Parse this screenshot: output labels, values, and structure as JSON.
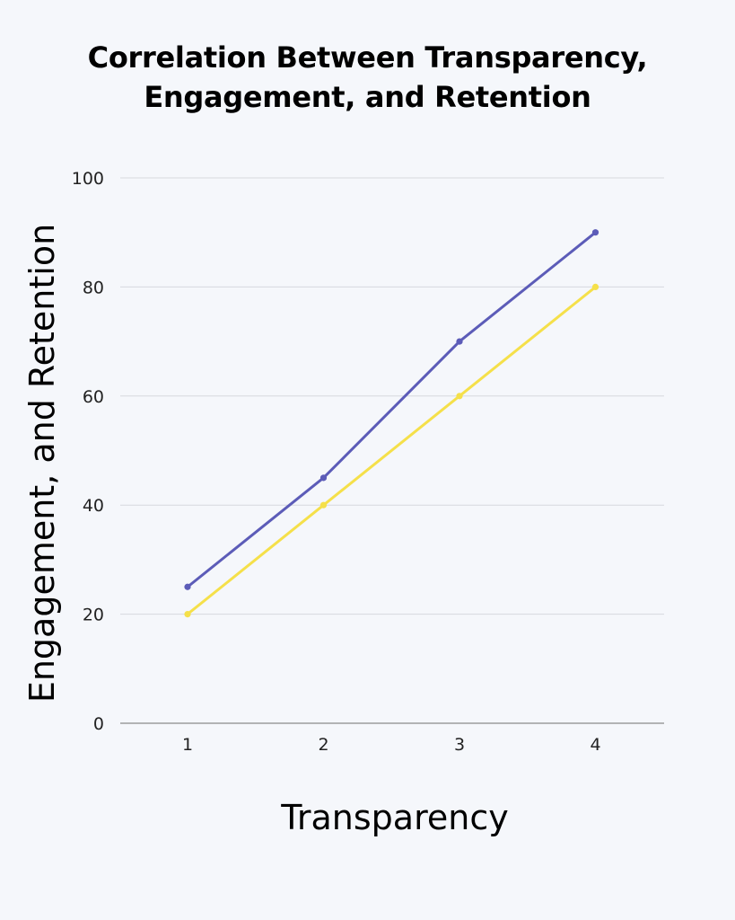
{
  "chart_data": {
    "type": "line",
    "title_lines": [
      "Correlation Between Transparency,",
      "Engagement, and Retention"
    ],
    "xlabel": "Transparency",
    "ylabel": "Engagement, and Retention",
    "x": [
      1,
      2,
      3,
      4
    ],
    "x_tick_labels": [
      "1",
      "2",
      "3",
      "4"
    ],
    "ylim": [
      0,
      100
    ],
    "y_ticks": [
      0,
      20,
      40,
      60,
      80,
      100
    ],
    "grid": true,
    "legend": "none",
    "series": [
      {
        "values": [
          25,
          45,
          70,
          90
        ],
        "color": "#5c5cb8"
      },
      {
        "values": [
          20,
          40,
          60,
          80
        ],
        "color": "#f5e04a"
      }
    ]
  }
}
